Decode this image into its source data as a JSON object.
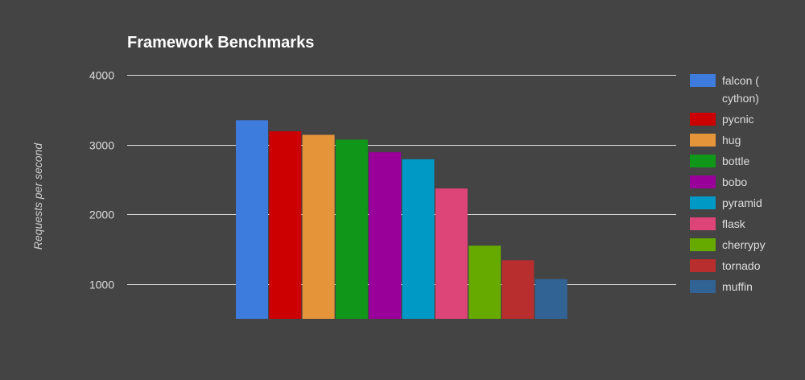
{
  "chart_data": {
    "type": "bar",
    "title": "Framework Benchmarks",
    "xlabel": "",
    "ylabel": "Requests per second",
    "ylim": [
      500,
      4000
    ],
    "yticks": [
      1000,
      2000,
      3000,
      4000
    ],
    "grid": true,
    "legend_position": "right",
    "categories": [
      "falcon ( cython)",
      "pycnic",
      "hug",
      "bottle",
      "bobo",
      "pyramid",
      "flask",
      "cherrypy",
      "tornado",
      "muffin"
    ],
    "values": [
      3350,
      3190,
      3140,
      3070,
      2890,
      2790,
      2370,
      1550,
      1340,
      1070
    ],
    "colors": [
      "#3d7bdc",
      "#cc0000",
      "#e6943a",
      "#109618",
      "#990099",
      "#0099c6",
      "#dd4477",
      "#66aa00",
      "#b82e2e",
      "#316395"
    ],
    "legend_lines": [
      [
        "falcon (",
        "cython)"
      ],
      [
        "pycnic"
      ],
      [
        "hug"
      ],
      [
        "bottle"
      ],
      [
        "bobo"
      ],
      [
        "pyramid"
      ],
      [
        "flask"
      ],
      [
        "cherrypy"
      ],
      [
        "tornado"
      ],
      [
        "muffin"
      ]
    ]
  },
  "theme": {
    "background": "#444444",
    "grid_color": "#dddddd"
  }
}
